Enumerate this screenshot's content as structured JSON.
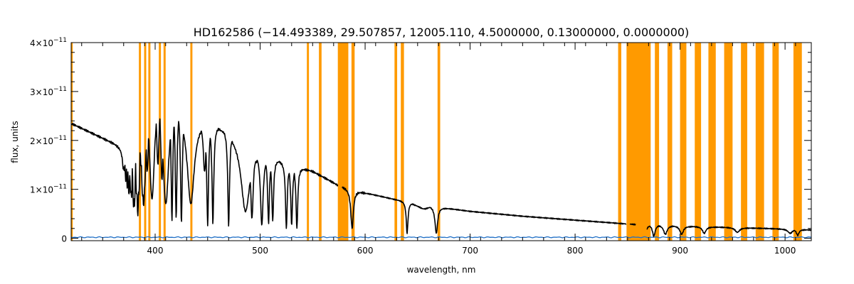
{
  "chart_data": {
    "type": "line",
    "title": "HD162586   (−14.493389, 29.507857, 12005.110, 4.5000000, 0.13000000, 0.0000000)",
    "xlabel": "wavelength, nm",
    "ylabel": "flux, units",
    "xlim": [
      320,
      1025
    ],
    "ylim": [
      -5e-13,
      4e-11
    ],
    "x_ticks": [
      400,
      500,
      600,
      700,
      800,
      900,
      1000
    ],
    "x_tick_labels": [
      "400",
      "500",
      "600",
      "700",
      "800",
      "900",
      "1000"
    ],
    "y_ticks": [
      0,
      1e-11,
      2e-11,
      3e-11,
      4e-11
    ],
    "y_tick_labels": [
      {
        "mantissa": "0",
        "exp": ""
      },
      {
        "mantissa": "1×10",
        "exp": "−11"
      },
      {
        "mantissa": "2×10",
        "exp": "−11"
      },
      {
        "mantissa": "3×10",
        "exp": "−11"
      },
      {
        "mantissa": "4×10",
        "exp": "−11"
      }
    ],
    "colors": {
      "spectrum": "#000000",
      "masks": "#ff9a00",
      "error": "#1f6fc6"
    },
    "masked_regions": [
      [
        320,
        321.5
      ],
      [
        384.5,
        386.5
      ],
      [
        389.5,
        391.5
      ],
      [
        393.5,
        395.5
      ],
      [
        403.5,
        405.5
      ],
      [
        408,
        410
      ],
      [
        433.5,
        435.5
      ],
      [
        544.5,
        546.5
      ],
      [
        556,
        558.5
      ],
      [
        574,
        584
      ],
      [
        587,
        590
      ],
      [
        628,
        630.5
      ],
      [
        634,
        637
      ],
      [
        669,
        671.5
      ],
      [
        841,
        844
      ],
      [
        849,
        872
      ],
      [
        876,
        880
      ],
      [
        888,
        892.5
      ],
      [
        900,
        906
      ],
      [
        914,
        920
      ],
      [
        927,
        934
      ],
      [
        942,
        950
      ],
      [
        958,
        964
      ],
      [
        972,
        980
      ],
      [
        988,
        994
      ],
      [
        1008,
        1016
      ]
    ],
    "series": [
      {
        "style": "spectrum",
        "continuum": [
          [
            320,
            2.35e-11
          ],
          [
            340,
            2.15e-11
          ],
          [
            360,
            1.95e-11
          ],
          [
            368,
            1.85e-11
          ],
          [
            372,
            2.1e-11
          ],
          [
            378,
            2.6e-11
          ],
          [
            384,
            3.05e-11
          ],
          [
            390,
            3.2e-11
          ],
          [
            400,
            3.18e-11
          ],
          [
            410,
            3.05e-11
          ],
          [
            420,
            2.8e-11
          ],
          [
            430,
            2.55e-11
          ],
          [
            440,
            2.45e-11
          ],
          [
            460,
            2.3e-11
          ],
          [
            480,
            2.12e-11
          ],
          [
            500,
            1.73e-11
          ],
          [
            520,
            1.58e-11
          ],
          [
            550,
            1.37e-11
          ],
          [
            575,
            1.08e-11
          ],
          [
            600,
            9.3e-12
          ],
          [
            650,
            7e-12
          ],
          [
            700,
            5.5e-12
          ],
          [
            750,
            4.5e-12
          ],
          [
            800,
            3.7e-12
          ],
          [
            845,
            3e-12
          ],
          [
            900,
            2.5e-12
          ],
          [
            950,
            2.2e-12
          ],
          [
            1000,
            1.9e-12
          ],
          [
            1025,
            1.7e-12
          ]
        ],
        "lines": [
          [
            370.0,
            1.45e-11,
            1.5
          ],
          [
            372.0,
            1.35e-11,
            1.5
          ],
          [
            373.4,
            1.25e-11,
            1.5
          ],
          [
            375.0,
            1.15e-11,
            1.5
          ],
          [
            377.1,
            1.05e-11,
            1.5
          ],
          [
            379.8,
            9.5e-12,
            2
          ],
          [
            383.5,
            8.5e-12,
            2.5
          ],
          [
            388.9,
            8.5e-12,
            3
          ],
          [
            397.0,
            8e-12,
            3
          ],
          [
            410.2,
            7e-12,
            3.5
          ],
          [
            434.0,
            7e-12,
            4
          ],
          [
            486.1,
            5.5e-12,
            5
          ],
          [
            656.3,
            6e-12,
            6
          ],
          [
            392.5,
            1.4e-11,
            1.5
          ],
          [
            402.6,
            1.5e-11,
            1.5
          ],
          [
            406.5,
            1.2e-11,
            1.5
          ],
          [
            447.1,
            1.35e-11,
            1.5
          ],
          [
            492.2,
            4e-12,
            1.5
          ],
          [
            501.6,
            2.5e-12,
            1.5
          ],
          [
            587.6,
            2e-12,
            1.5
          ],
          [
            667.8,
            1e-12,
            1.5
          ],
          [
            416.0,
            3.5e-12,
            1
          ],
          [
            420.0,
            4e-12,
            1
          ],
          [
            425.0,
            3e-12,
            1
          ],
          [
            450.0,
            2.5e-12,
            1
          ],
          [
            455.0,
            3e-12,
            1
          ],
          [
            470.0,
            2.5e-12,
            1
          ],
          [
            508.0,
            3e-12,
            1
          ],
          [
            512.0,
            3.5e-12,
            1
          ],
          [
            525.0,
            2e-12,
            1
          ],
          [
            530.0,
            2.5e-12,
            1
          ],
          [
            535.0,
            2e-12,
            1
          ],
          [
            640.0,
            1e-12,
            1
          ]
        ],
        "gaps": [
          [
            574,
            578
          ],
          [
            849,
            852
          ],
          [
            858,
            868
          ]
        ],
        "segments_after_gaps": [
          [
            853,
            857
          ]
        ],
        "ir_dips": [
          [
            866.2,
            8e-13,
            2
          ],
          [
            875.0,
            4e-13,
            1.5
          ],
          [
            886.0,
            8e-13,
            2
          ],
          [
            901.5,
            8e-13,
            2
          ],
          [
            923.0,
            1e-12,
            2
          ],
          [
            954.6,
            1.2e-12,
            2.5
          ],
          [
            1004.9,
            1e-12,
            2.5
          ],
          [
            1012.0,
            6e-13,
            1.5
          ]
        ]
      },
      {
        "style": "error",
        "level": 2e-13,
        "xrange": [
          320,
          1025
        ]
      }
    ]
  }
}
